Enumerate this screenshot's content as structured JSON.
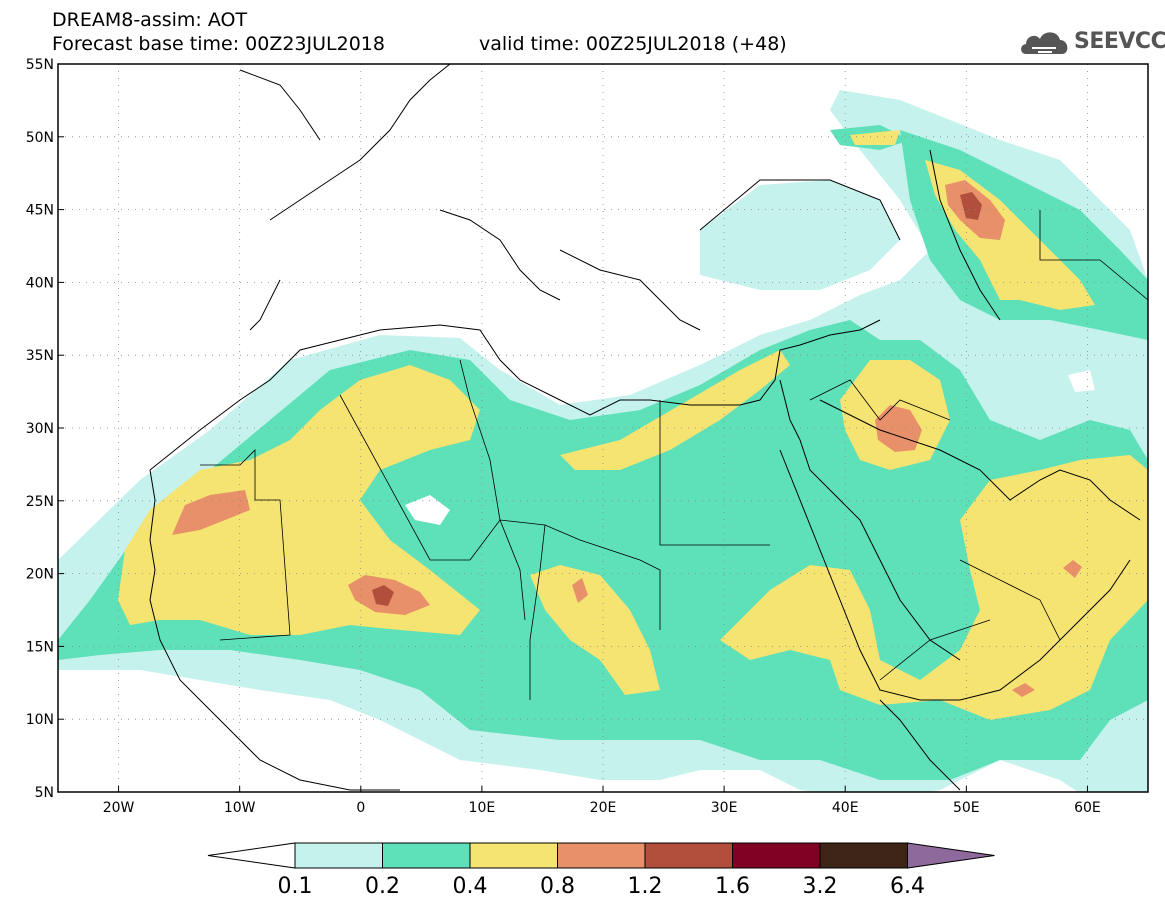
{
  "header": {
    "line1": "DREAM8-assim: AOT",
    "line2_left": "Forecast base time: 00Z23JUL2018",
    "line2_right": "valid time: 00Z25JUL2018 (+48)"
  },
  "logo": {
    "text": "SEEVCCC",
    "icon": "cloud-icon"
  },
  "map": {
    "projection": "lat-lon",
    "lon_ticks": [
      "20W",
      "10W",
      "0",
      "10E",
      "20E",
      "30E",
      "40E",
      "50E",
      "60E"
    ],
    "lat_ticks": [
      "55N",
      "50N",
      "45N",
      "40N",
      "35N",
      "30N",
      "25N",
      "20N",
      "15N",
      "10N",
      "5N"
    ],
    "lon_range": [
      -25,
      65
    ],
    "lat_range": [
      5,
      55
    ],
    "grid": "dotted"
  },
  "colorbar": {
    "labels": [
      "0.1",
      "0.2",
      "0.4",
      "0.8",
      "1.2",
      "1.6",
      "3.2",
      "6.4"
    ],
    "colors": [
      "#ffffff",
      "#c5f2ec",
      "#5ee0b8",
      "#f6e472",
      "#e7906a",
      "#b24e3c",
      "#800024",
      "#3e2416",
      "#8e6a9c"
    ]
  }
}
